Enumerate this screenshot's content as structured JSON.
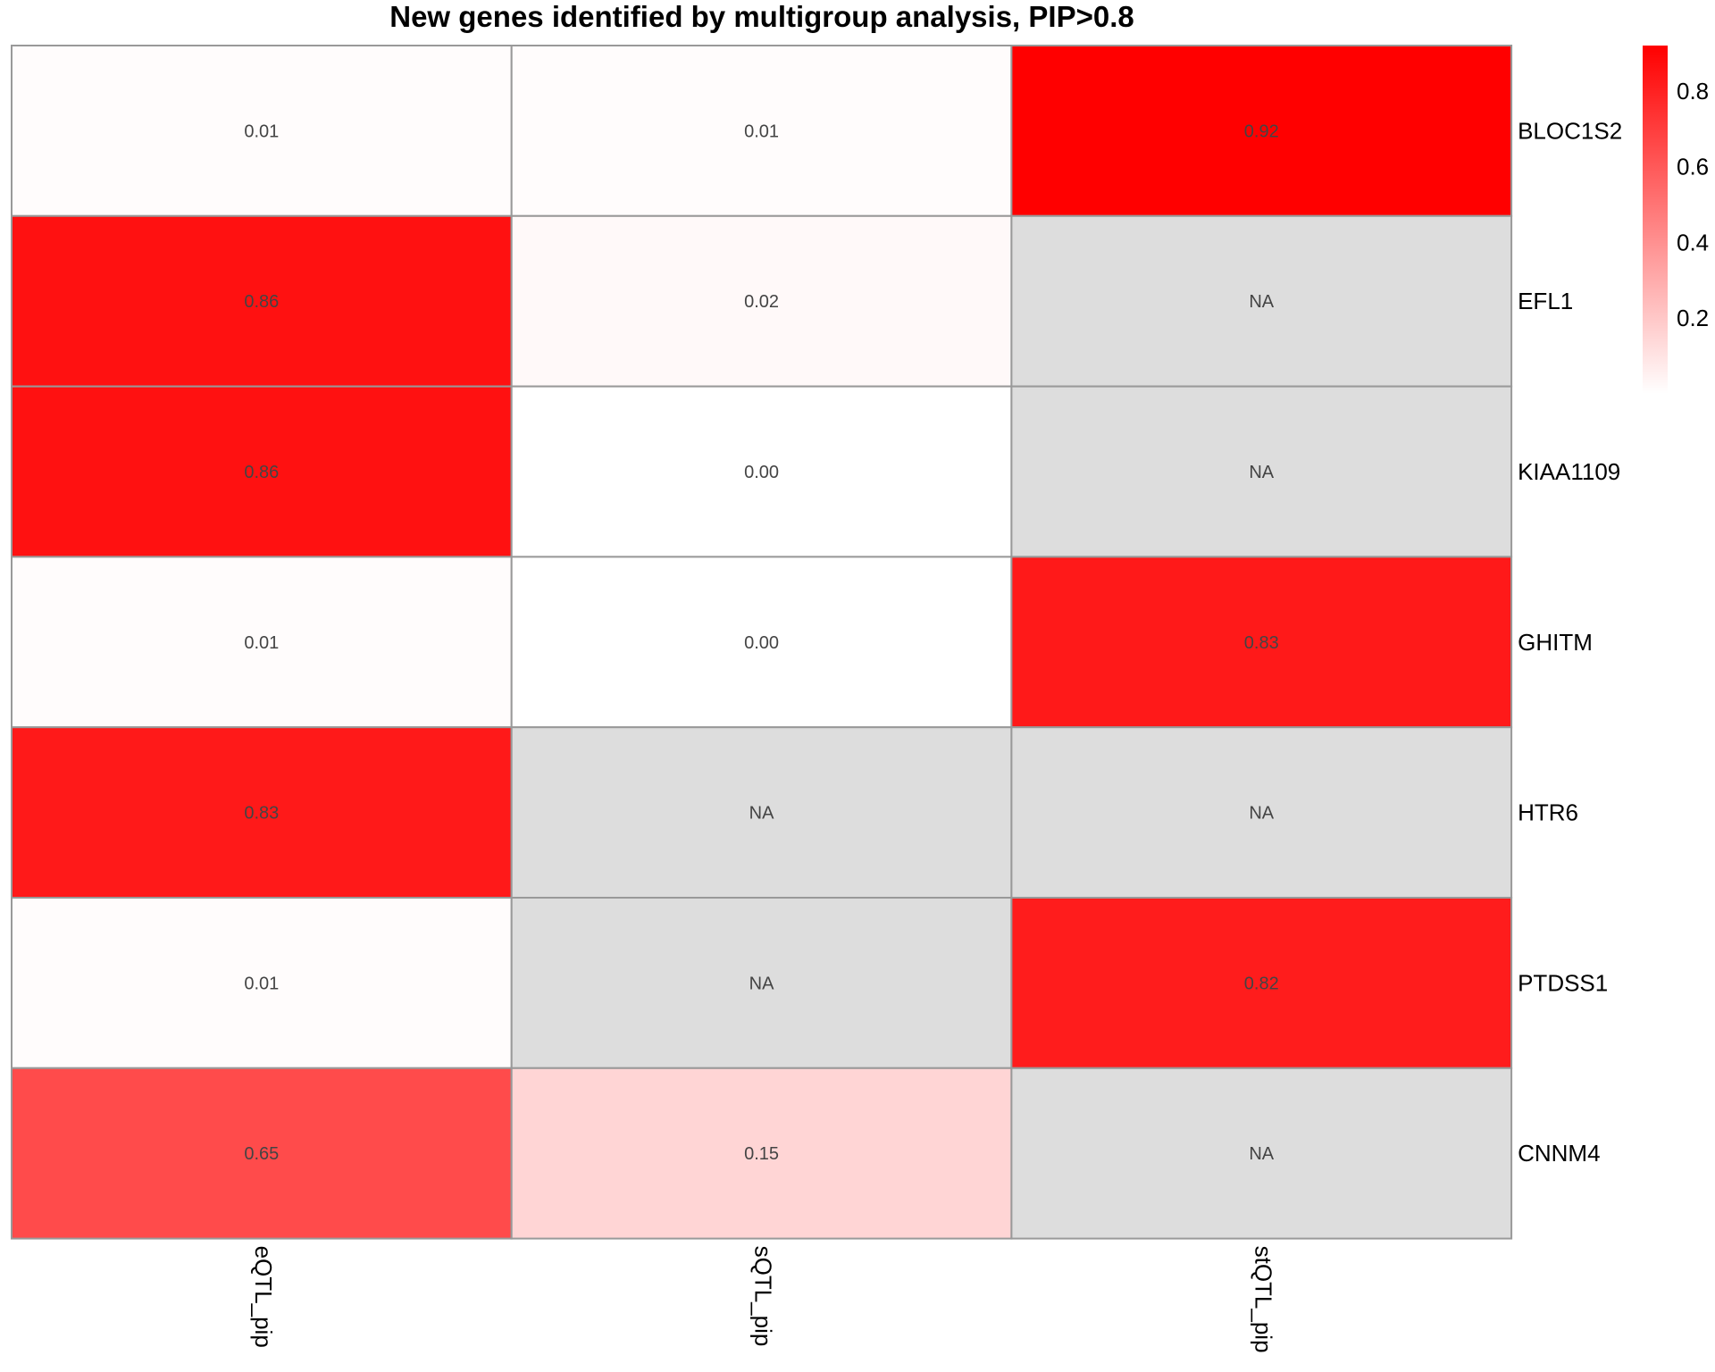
{
  "chart_data": {
    "type": "heatmap",
    "title": "New genes identified by multigroup analysis, PIP>0.8",
    "columns": [
      "eQTL_pip",
      "sQTL_pip",
      "stQTL_pip"
    ],
    "rows": [
      "BLOC1S2",
      "EFL1",
      "KIAA1109",
      "GHITM",
      "HTR6",
      "PTDSS1",
      "CNNM4"
    ],
    "values": [
      [
        0.01,
        0.01,
        0.92
      ],
      [
        0.86,
        0.02,
        null
      ],
      [
        0.86,
        0.0,
        null
      ],
      [
        0.01,
        0.0,
        0.83
      ],
      [
        0.83,
        null,
        null
      ],
      [
        0.01,
        null,
        0.82
      ],
      [
        0.65,
        0.15,
        null
      ]
    ],
    "cell_labels": [
      [
        "0.01",
        "0.01",
        "0.92"
      ],
      [
        "0.86",
        "0.02",
        "NA"
      ],
      [
        "0.86",
        "0.00",
        "NA"
      ],
      [
        "0.01",
        "0.00",
        "0.83"
      ],
      [
        "0.83",
        "NA",
        "NA"
      ],
      [
        "0.01",
        "NA",
        "0.82"
      ],
      [
        "0.65",
        "0.15",
        "NA"
      ]
    ],
    "na_color": "#DDDDDD",
    "border_color": "#999999",
    "color_scale": {
      "low": "#FFFFFF",
      "high": "#FF0000",
      "min": 0,
      "max": 0.92
    },
    "legend": {
      "ticks": [
        0.2,
        0.4,
        0.6,
        0.8
      ],
      "tick_labels": [
        "0.2",
        "0.4",
        "0.6",
        "0.8"
      ],
      "position": "top-right"
    }
  }
}
